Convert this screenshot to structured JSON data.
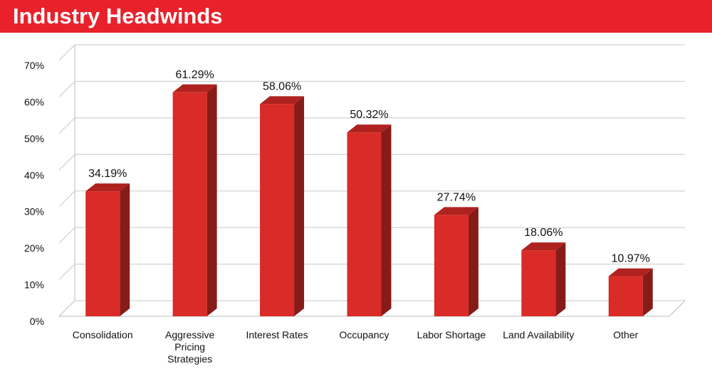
{
  "chart_data": {
    "type": "bar3d",
    "title": "Industry Headwinds",
    "categories": [
      "Consolidation",
      "Aggressive\nPricing\nStrategies",
      "Interest Rates",
      "Occupancy",
      "Labor Shortage",
      "Land Availability",
      "Other"
    ],
    "values": [
      34.19,
      61.29,
      58.06,
      50.32,
      27.74,
      18.06,
      10.97
    ],
    "value_labels": [
      "34.19%",
      "61.29%",
      "58.06%",
      "50.32%",
      "27.74%",
      "18.06%",
      "10.97%"
    ],
    "color": "#d92b27",
    "ylim": [
      0,
      70
    ],
    "yticks": [
      {
        "value": 0,
        "label": "0%"
      },
      {
        "value": 10,
        "label": "10%"
      },
      {
        "value": 20,
        "label": "20%"
      },
      {
        "value": 30,
        "label": "30%"
      },
      {
        "value": 40,
        "label": "40%"
      },
      {
        "value": 50,
        "label": "50%"
      },
      {
        "value": 60,
        "label": "60%"
      },
      {
        "value": 70,
        "label": "70%"
      }
    ],
    "grid": true
  }
}
